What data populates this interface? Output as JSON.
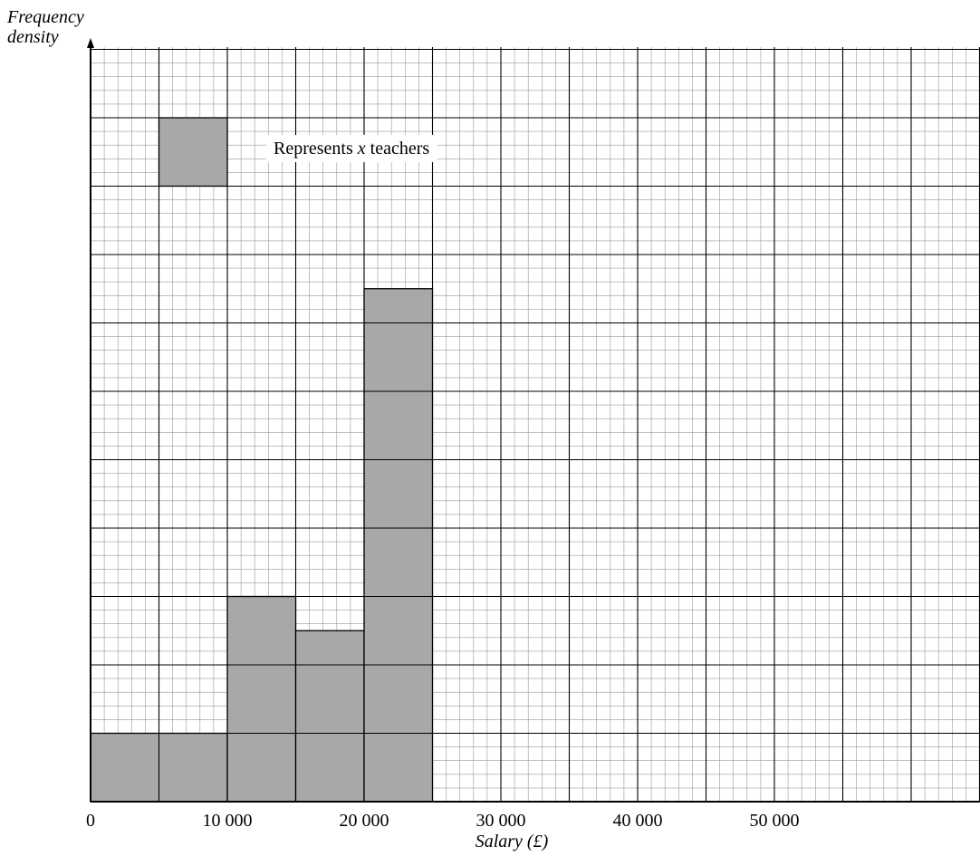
{
  "chart_data": {
    "type": "histogram",
    "title": "",
    "ylabel_line1": "Frequency",
    "ylabel_line2": "density",
    "xlabel": "Salary (£)",
    "xlim": [
      0,
      65000
    ],
    "grid": true,
    "tick_values": [
      0,
      10000,
      20000,
      30000,
      40000,
      50000
    ],
    "tick_labels": [
      "0",
      "10 000",
      "20 000",
      "30 000",
      "40 000",
      "50 000"
    ],
    "bins": [
      {
        "start": 0,
        "end": 10000,
        "height": 1.0
      },
      {
        "start": 10000,
        "end": 15000,
        "height": 3.0
      },
      {
        "start": 15000,
        "end": 20000,
        "height": 2.5
      },
      {
        "start": 20000,
        "end": 25000,
        "height": 7.5
      }
    ],
    "key": {
      "box": {
        "start": 5000,
        "end": 10000,
        "bottom": 9,
        "top": 10
      },
      "label_prefix": "Represents ",
      "label_var": "x",
      "label_suffix": " teachers"
    },
    "colors": {
      "bar": "#a8a8aa",
      "minor_grid": "#9a9a9a",
      "major_grid": "#000000"
    }
  }
}
